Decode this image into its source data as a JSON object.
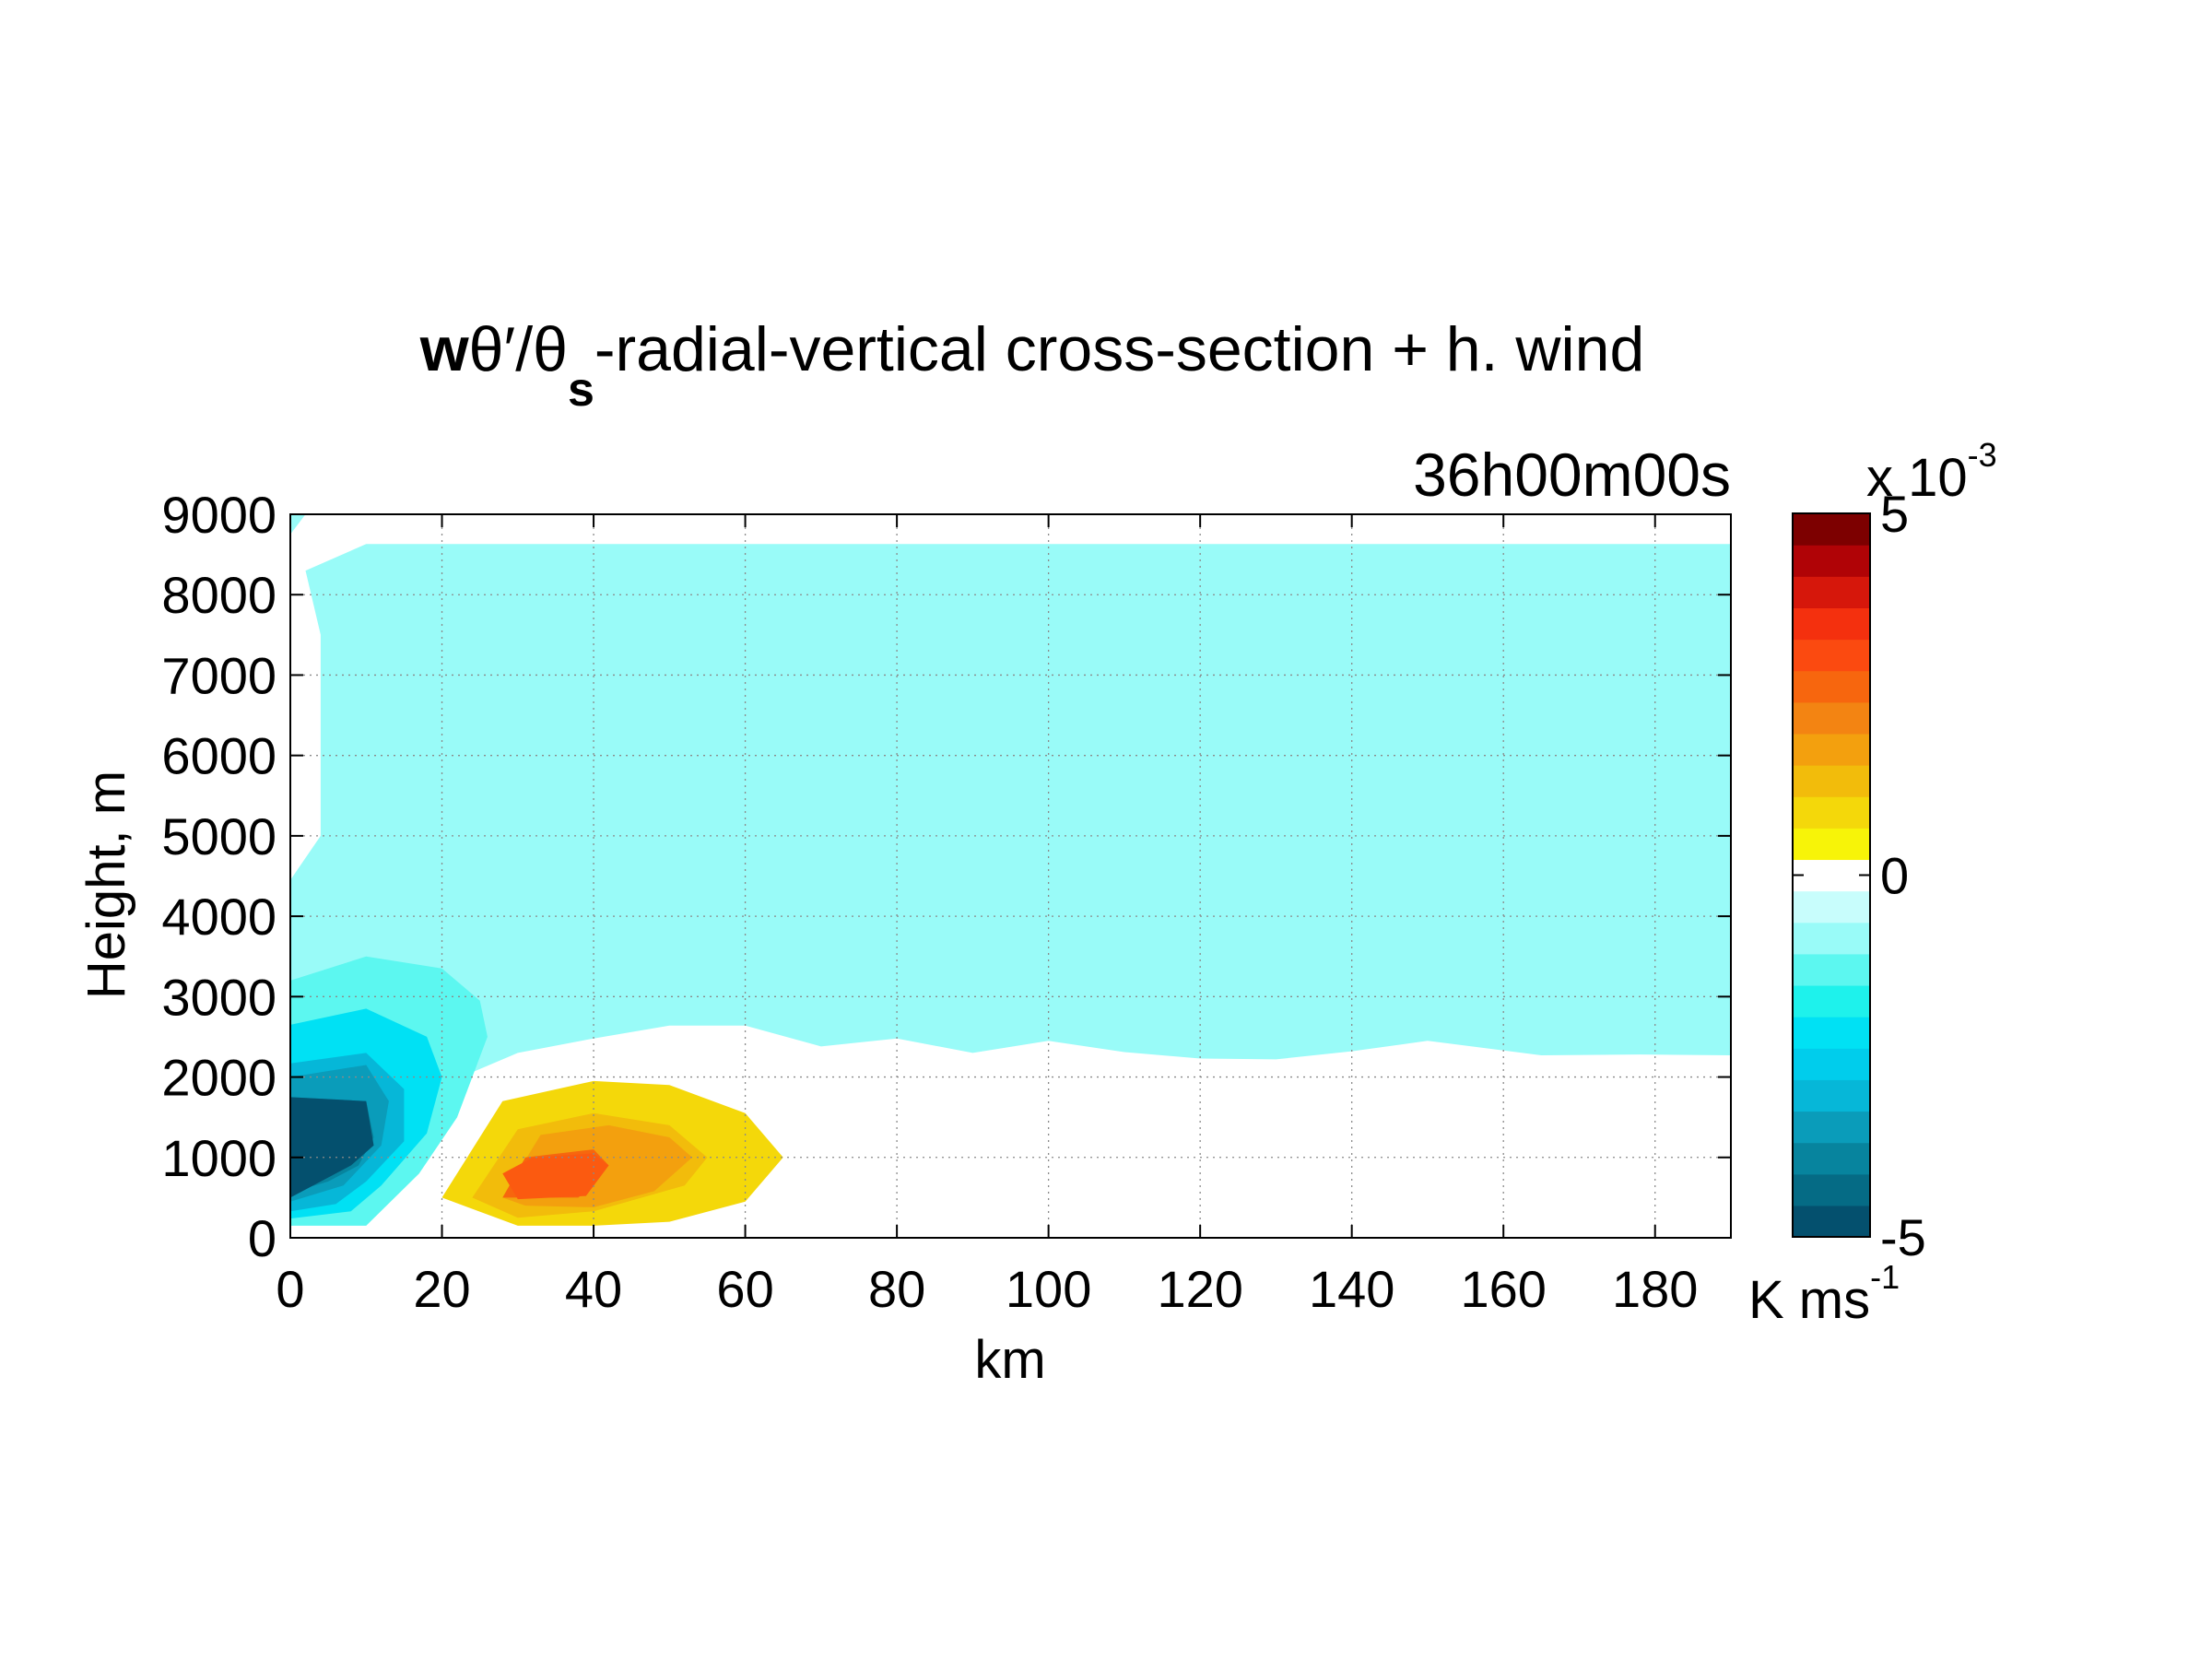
{
  "chart_data": {
    "type": "contourf",
    "title": {
      "prefix_bold": "w",
      "theta_prime": "θ′",
      "slash": "/",
      "theta": "θ",
      "subscript": "s",
      "suffix": "-radial-vertical cross-section + h. wind"
    },
    "time_label": "36h00m00s",
    "xlabel": "km",
    "ylabel": "Height, m",
    "xlim": [
      0,
      190
    ],
    "ylim": [
      0,
      9000
    ],
    "xticks": [
      0,
      20,
      40,
      60,
      80,
      100,
      120,
      140,
      160,
      180
    ],
    "yticks": [
      0,
      1000,
      2000,
      3000,
      4000,
      5000,
      6000,
      7000,
      8000,
      9000
    ],
    "grid": "dotted",
    "colorbar": {
      "range": [
        -5,
        5
      ],
      "ticks": [
        -5,
        0,
        5
      ],
      "exponent_base": "x 10",
      "exponent": "-3",
      "unit_base": "K ms",
      "unit_exp": "-1",
      "colors": [
        "#04506e",
        "#056b85",
        "#07849e",
        "#0a9cba",
        "#06b7d8",
        "#00cdec",
        "#00e1f4",
        "#1ef2ec",
        "#5cf7f0",
        "#99fbf8",
        "#c8fdfc",
        "#ffffff",
        "#f7f408",
        "#f4d80a",
        "#f2bc0b",
        "#f3a00e",
        "#f38412",
        "#f7660e",
        "#fb4a10",
        "#f4300e",
        "#d6170b",
        "#b00306",
        "#7d0000"
      ]
    },
    "regions": [
      {
        "level": "light-cyan",
        "color": "#99fbf8",
        "points": [
          [
            2,
            8300
          ],
          [
            10,
            8630
          ],
          [
            190,
            8630
          ],
          [
            190,
            2270
          ],
          [
            178,
            2280
          ],
          [
            165,
            2270
          ],
          [
            150,
            2450
          ],
          [
            140,
            2320
          ],
          [
            130,
            2220
          ],
          [
            120,
            2230
          ],
          [
            110,
            2310
          ],
          [
            100,
            2450
          ],
          [
            90,
            2300
          ],
          [
            80,
            2480
          ],
          [
            70,
            2380
          ],
          [
            60,
            2640
          ],
          [
            50,
            2640
          ],
          [
            40,
            2480
          ],
          [
            30,
            2300
          ],
          [
            20,
            1900
          ],
          [
            0,
            1900
          ],
          [
            0,
            4450
          ],
          [
            4,
            5000
          ],
          [
            4,
            7500
          ],
          [
            2,
            8300
          ]
        ]
      },
      {
        "level": "light-cyan-topleft",
        "color": "#99fbf8",
        "points": [
          [
            0,
            9000
          ],
          [
            2,
            9000
          ],
          [
            0,
            8750
          ]
        ]
      },
      {
        "level": "cyan-1",
        "color": "#5cf7f0",
        "points": [
          [
            0,
            3200
          ],
          [
            10,
            3500
          ],
          [
            20,
            3350
          ],
          [
            25,
            2950
          ],
          [
            26,
            2500
          ],
          [
            22,
            1500
          ],
          [
            17,
            800
          ],
          [
            10,
            150
          ],
          [
            0,
            150
          ]
        ]
      },
      {
        "level": "cyan-2",
        "color": "#00e1f4",
        "points": [
          [
            0,
            2650
          ],
          [
            10,
            2850
          ],
          [
            18,
            2500
          ],
          [
            20,
            2000
          ],
          [
            18,
            1300
          ],
          [
            12,
            650
          ],
          [
            8,
            330
          ],
          [
            0,
            240
          ]
        ]
      },
      {
        "level": "cyan-3",
        "color": "#06b7d8",
        "points": [
          [
            0,
            2170
          ],
          [
            10,
            2300
          ],
          [
            15,
            1850
          ],
          [
            15,
            1200
          ],
          [
            10,
            700
          ],
          [
            6,
            420
          ],
          [
            0,
            330
          ]
        ]
      },
      {
        "level": "blue-1",
        "color": "#0a9cba",
        "points": [
          [
            0,
            2000
          ],
          [
            10,
            2150
          ],
          [
            13,
            1700
          ],
          [
            12,
            1150
          ],
          [
            7,
            650
          ],
          [
            0,
            450
          ]
        ]
      },
      {
        "level": "blue-2",
        "color": "#07849e",
        "points": [
          [
            0,
            1750
          ],
          [
            10,
            1700
          ],
          [
            11,
            1250
          ],
          [
            9,
            900
          ],
          [
            5,
            700
          ],
          [
            0,
            560
          ]
        ]
      },
      {
        "level": "blue-3",
        "color": "#04506e",
        "points": [
          [
            0,
            1750
          ],
          [
            10,
            1700
          ],
          [
            11,
            1150
          ],
          [
            8,
            900
          ],
          [
            0,
            500
          ]
        ]
      },
      {
        "level": "yellow-1",
        "color": "#f4d80a",
        "points": [
          [
            20,
            500
          ],
          [
            28,
            1700
          ],
          [
            40,
            1950
          ],
          [
            50,
            1900
          ],
          [
            60,
            1550
          ],
          [
            65,
            1000
          ],
          [
            60,
            450
          ],
          [
            50,
            200
          ],
          [
            40,
            150
          ],
          [
            30,
            150
          ]
        ]
      },
      {
        "level": "yellow-2",
        "color": "#f2bc0b",
        "points": [
          [
            24,
            500
          ],
          [
            30,
            1350
          ],
          [
            40,
            1550
          ],
          [
            50,
            1400
          ],
          [
            55,
            1000
          ],
          [
            52,
            650
          ],
          [
            40,
            330
          ],
          [
            30,
            250
          ]
        ]
      },
      {
        "level": "orange-1",
        "color": "#f3a00e",
        "points": [
          [
            28,
            500
          ],
          [
            33,
            1280
          ],
          [
            42,
            1400
          ],
          [
            50,
            1250
          ],
          [
            53,
            1000
          ],
          [
            48,
            580
          ],
          [
            40,
            380
          ],
          [
            31,
            400
          ]
        ]
      },
      {
        "level": "orange-2",
        "color": "#f7660e",
        "points": [
          [
            28,
            500
          ],
          [
            31,
            1000
          ],
          [
            40,
            1100
          ],
          [
            42,
            900
          ],
          [
            38,
            500
          ]
        ]
      },
      {
        "level": "orange-3",
        "color": "#fb5a10",
        "points": [
          [
            28,
            800
          ],
          [
            32,
            1000
          ],
          [
            40,
            1050
          ],
          [
            42,
            900
          ],
          [
            39,
            520
          ],
          [
            30,
            480
          ]
        ]
      }
    ]
  }
}
